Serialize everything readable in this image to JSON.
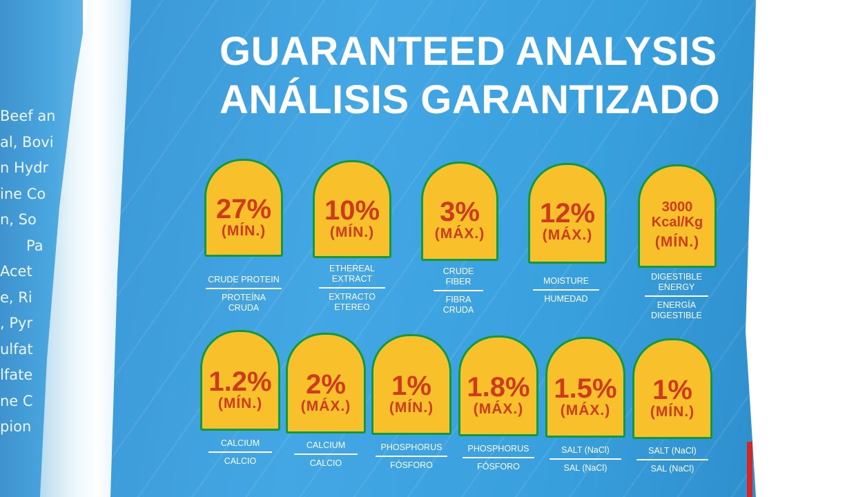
{
  "background_text": [
    "Beef an",
    "al, Bovi",
    "n Hydr",
    "ine Co",
    "n, So",
    "Pa",
    "Acet",
    "e, Ri",
    ", Pyr",
    "ulfat",
    "lfate",
    "ne C",
    "pion"
  ],
  "title_en": "GUARANTEED ANALYSIS",
  "title_es": "ANÁLISIS GARANTIZADO",
  "colors": {
    "panel": "#43a7e4",
    "badge_fill": "#f8c12c",
    "badge_border": "#0f9a3e",
    "badge_text": "#cf3b1a"
  },
  "row1": [
    {
      "value": "27%",
      "qualifier": "(MÍN.)",
      "label_en": "CRUDE PROTEIN",
      "label_es": "PROTEÍNA CRUDA"
    },
    {
      "value": "10%",
      "qualifier": "(MÍN.)",
      "label_en": "ETHEREAL EXTRACT",
      "label_es": "EXTRACTO ETEREO"
    },
    {
      "value": "3%",
      "qualifier": "(MÁX.)",
      "label_en": "CRUDE FIBER",
      "label_es": "FIBRA CRUDA"
    },
    {
      "value": "12%",
      "qualifier": "(MÁX.)",
      "label_en": "MOISTURE",
      "label_es": "HUMEDAD"
    },
    {
      "value": "3000 Kcal/Kg",
      "qualifier": "(MÍN.)",
      "label_en": "DIGESTIBLE ENERGY",
      "label_es": "ENERGÍA DIGESTIBLE"
    }
  ],
  "row2": [
    {
      "value": "1.2%",
      "qualifier": "(MÍN.)",
      "label_en": "CALCIUM",
      "label_es": "CALCIO"
    },
    {
      "value": "2%",
      "qualifier": "(MÁX.)",
      "label_en": "CALCIUM",
      "label_es": "CALCIO"
    },
    {
      "value": "1%",
      "qualifier": "(MÍN.)",
      "label_en": "PHOSPHORUS",
      "label_es": "FÓSFORO"
    },
    {
      "value": "1.8%",
      "qualifier": "(MÁX.)",
      "label_en": "PHOSPHORUS",
      "label_es": "FÓSFORO"
    },
    {
      "value": "1.5%",
      "qualifier": "(MÁX.)",
      "label_en": "SALT (NaCl)",
      "label_es": "SAL (NaCl)"
    },
    {
      "value": "1%",
      "qualifier": "(MÍN.)",
      "label_en": "SALT (NaCl)",
      "label_es": "SAL (NaCl)"
    }
  ]
}
